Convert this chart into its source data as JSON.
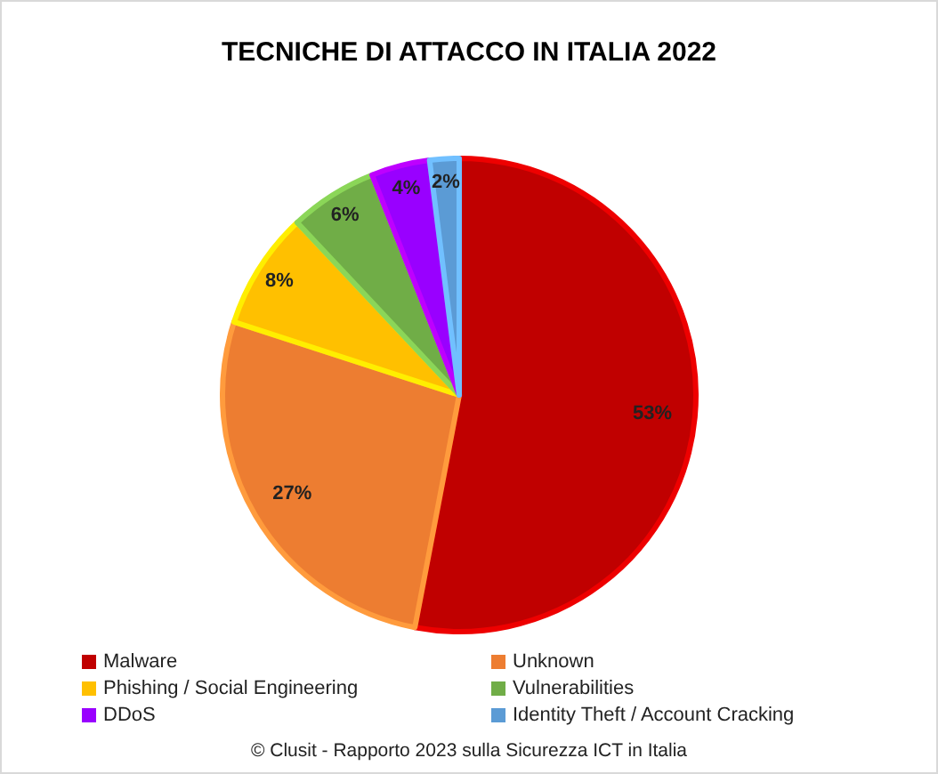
{
  "chart_data": {
    "type": "pie",
    "title": "TECNICHE DI ATTACCO IN ITALIA 2022",
    "categories": [
      "Malware",
      "Unknown",
      "Phishing / Social Engineering",
      "Vulnerabilities",
      "DDoS",
      "Identity Theft / Account Cracking"
    ],
    "values": [
      53,
      27,
      8,
      6,
      4,
      2
    ],
    "colors": [
      "#c00000",
      "#ed7d31",
      "#ffc000",
      "#70ad47",
      "#9900ff",
      "#5b9bd5"
    ],
    "value_labels": [
      "53%",
      "27%",
      "8%",
      "6%",
      "4%",
      "2%"
    ],
    "legend": "bottom",
    "annotations": [
      "© Clusit - Rapporto 2023 sulla Sicurezza ICT in Italia"
    ]
  }
}
